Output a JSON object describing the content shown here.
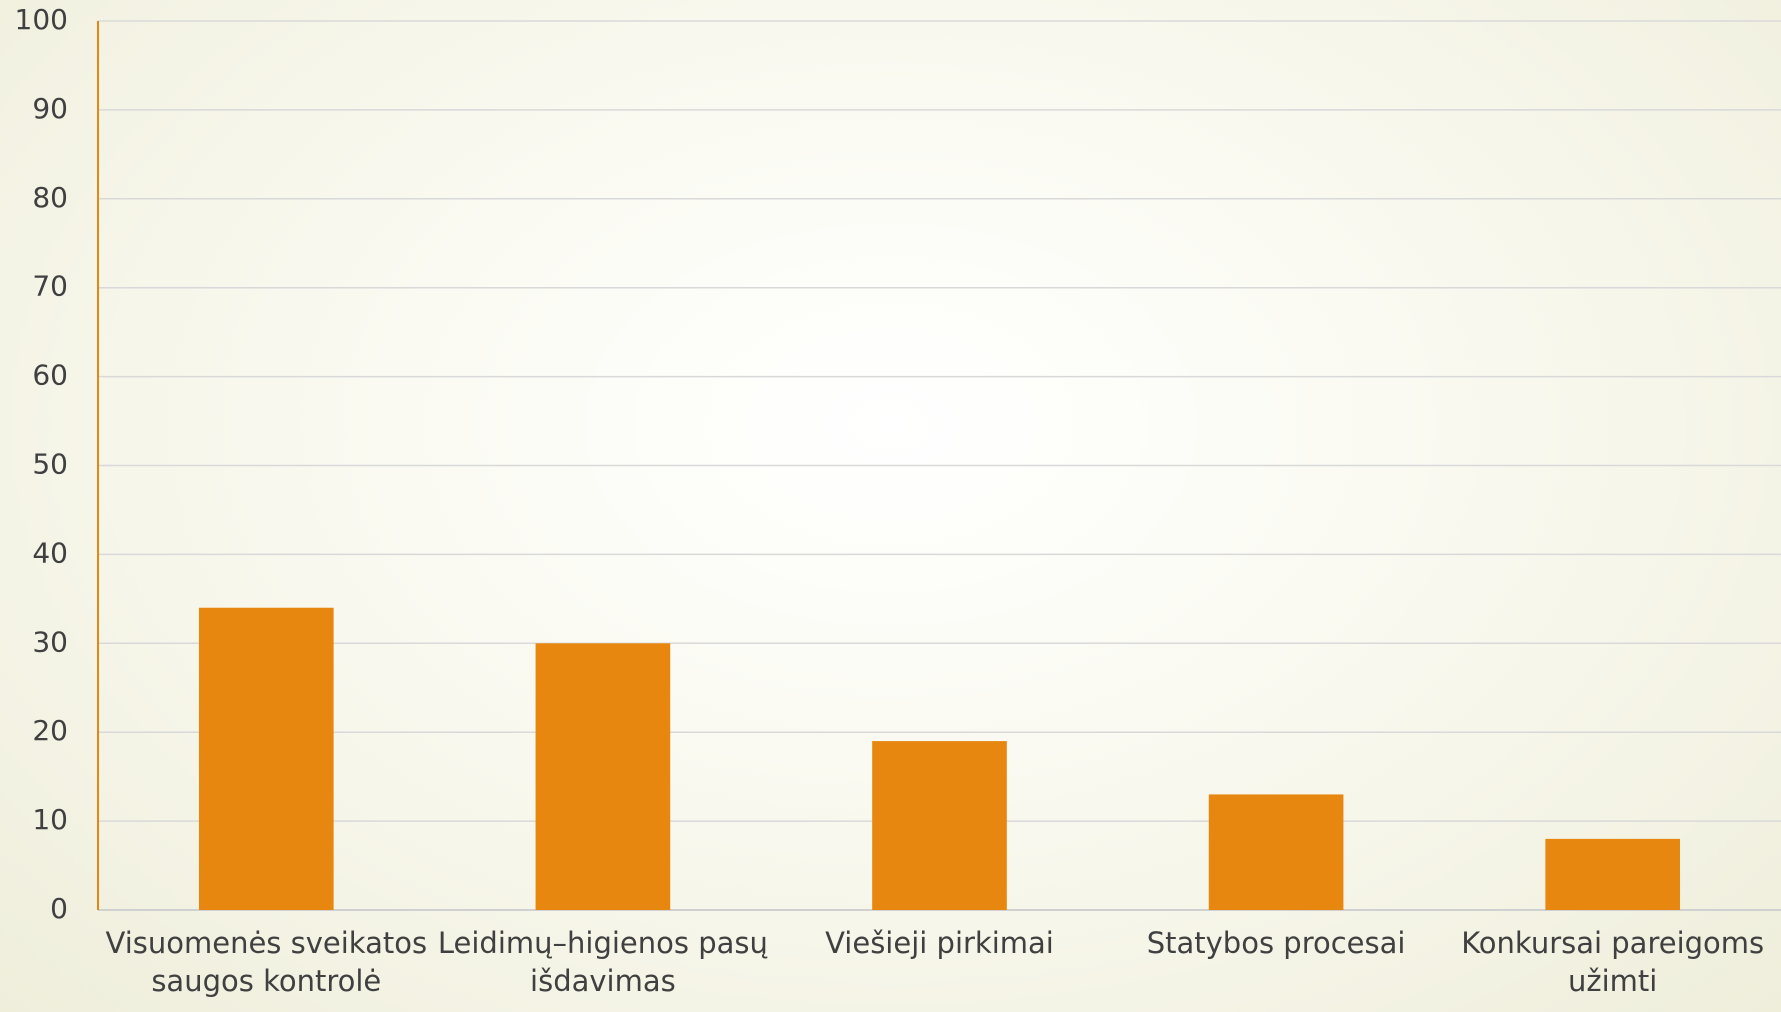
{
  "chart_data": {
    "type": "bar",
    "categories": [
      "Visuomenės sveikatos saugos kontrolė",
      "Leidimų–higienos pasų išdavimas",
      "Viešieji pirkimai",
      "Statybos procesai",
      "Konkursai pareigoms užimti"
    ],
    "values": [
      34,
      30,
      19,
      13,
      8
    ],
    "color": "#e8870f",
    "ylim": [
      0,
      100
    ],
    "yticks": [
      0,
      10,
      20,
      30,
      40,
      50,
      60,
      70,
      80,
      90,
      100
    ],
    "grid": true
  }
}
